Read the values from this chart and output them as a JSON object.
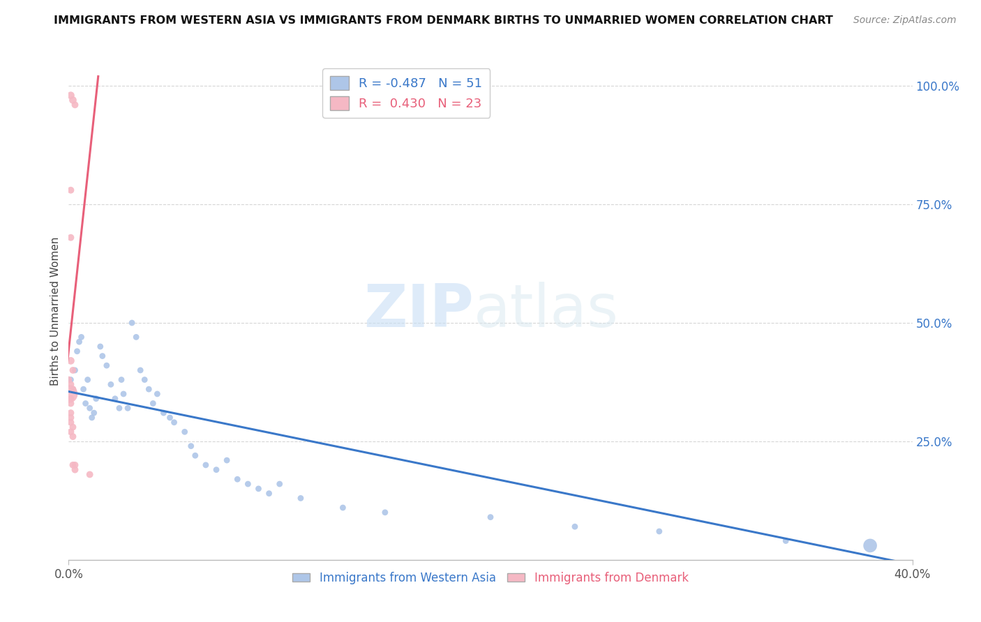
{
  "title": "IMMIGRANTS FROM WESTERN ASIA VS IMMIGRANTS FROM DENMARK BIRTHS TO UNMARRIED WOMEN CORRELATION CHART",
  "source": "Source: ZipAtlas.com",
  "ylabel": "Births to Unmarried Women",
  "watermark_zip": "ZIP",
  "watermark_atlas": "atlas",
  "legend_blue_r": "-0.487",
  "legend_blue_n": "51",
  "legend_pink_r": "0.430",
  "legend_pink_n": "23",
  "legend_blue_label": "Immigrants from Western Asia",
  "legend_pink_label": "Immigrants from Denmark",
  "blue_color": "#aec6e8",
  "pink_color": "#f5b8c4",
  "line_blue": "#3a78c9",
  "line_pink": "#e8607a",
  "blue_scatter": [
    [
      0.001,
      0.38
    ],
    [
      0.002,
      0.36
    ],
    [
      0.003,
      0.4
    ],
    [
      0.004,
      0.44
    ],
    [
      0.005,
      0.46
    ],
    [
      0.006,
      0.47
    ],
    [
      0.007,
      0.36
    ],
    [
      0.008,
      0.33
    ],
    [
      0.009,
      0.38
    ],
    [
      0.01,
      0.32
    ],
    [
      0.011,
      0.3
    ],
    [
      0.012,
      0.31
    ],
    [
      0.013,
      0.34
    ],
    [
      0.015,
      0.45
    ],
    [
      0.016,
      0.43
    ],
    [
      0.018,
      0.41
    ],
    [
      0.02,
      0.37
    ],
    [
      0.022,
      0.34
    ],
    [
      0.024,
      0.32
    ],
    [
      0.025,
      0.38
    ],
    [
      0.026,
      0.35
    ],
    [
      0.028,
      0.32
    ],
    [
      0.03,
      0.5
    ],
    [
      0.032,
      0.47
    ],
    [
      0.034,
      0.4
    ],
    [
      0.036,
      0.38
    ],
    [
      0.038,
      0.36
    ],
    [
      0.04,
      0.33
    ],
    [
      0.042,
      0.35
    ],
    [
      0.045,
      0.31
    ],
    [
      0.048,
      0.3
    ],
    [
      0.05,
      0.29
    ],
    [
      0.055,
      0.27
    ],
    [
      0.058,
      0.24
    ],
    [
      0.06,
      0.22
    ],
    [
      0.065,
      0.2
    ],
    [
      0.07,
      0.19
    ],
    [
      0.075,
      0.21
    ],
    [
      0.08,
      0.17
    ],
    [
      0.085,
      0.16
    ],
    [
      0.09,
      0.15
    ],
    [
      0.095,
      0.14
    ],
    [
      0.1,
      0.16
    ],
    [
      0.11,
      0.13
    ],
    [
      0.13,
      0.11
    ],
    [
      0.15,
      0.1
    ],
    [
      0.2,
      0.09
    ],
    [
      0.24,
      0.07
    ],
    [
      0.28,
      0.06
    ],
    [
      0.34,
      0.04
    ],
    [
      0.38,
      0.03
    ]
  ],
  "blue_sizes": [
    40,
    40,
    40,
    40,
    40,
    40,
    40,
    40,
    40,
    40,
    40,
    40,
    40,
    40,
    40,
    40,
    40,
    40,
    40,
    40,
    40,
    40,
    40,
    40,
    40,
    40,
    40,
    40,
    40,
    40,
    40,
    40,
    40,
    40,
    40,
    40,
    40,
    40,
    40,
    40,
    40,
    40,
    40,
    40,
    40,
    40,
    40,
    40,
    40,
    40,
    200
  ],
  "pink_scatter": [
    [
      0.001,
      0.98
    ],
    [
      0.002,
      0.97
    ],
    [
      0.003,
      0.96
    ],
    [
      0.001,
      0.78
    ],
    [
      0.001,
      0.68
    ],
    [
      0.001,
      0.42
    ],
    [
      0.002,
      0.4
    ],
    [
      0.0,
      0.38
    ],
    [
      0.001,
      0.37
    ],
    [
      0.002,
      0.36
    ],
    [
      0.0,
      0.35
    ],
    [
      0.001,
      0.34
    ],
    [
      0.001,
      0.33
    ],
    [
      0.001,
      0.31
    ],
    [
      0.001,
      0.3
    ],
    [
      0.001,
      0.29
    ],
    [
      0.002,
      0.28
    ],
    [
      0.001,
      0.27
    ],
    [
      0.002,
      0.26
    ],
    [
      0.002,
      0.2
    ],
    [
      0.003,
      0.19
    ],
    [
      0.003,
      0.2
    ],
    [
      0.01,
      0.18
    ]
  ],
  "pink_sizes": [
    60,
    60,
    50,
    50,
    50,
    60,
    50,
    50,
    50,
    50,
    350,
    50,
    50,
    50,
    50,
    50,
    50,
    50,
    50,
    50,
    50,
    50,
    50
  ],
  "xlim": [
    0.0,
    0.4
  ],
  "ylim": [
    0.0,
    1.05
  ],
  "yticks": [
    0.25,
    0.5,
    0.75,
    1.0
  ],
  "xticks": [
    0.0,
    0.4
  ],
  "blue_line_x": [
    0.0,
    0.4
  ],
  "blue_line_y": [
    0.355,
    -0.01
  ],
  "pink_line_x": [
    -0.002,
    0.014
  ],
  "pink_line_y": [
    0.36,
    1.02
  ]
}
